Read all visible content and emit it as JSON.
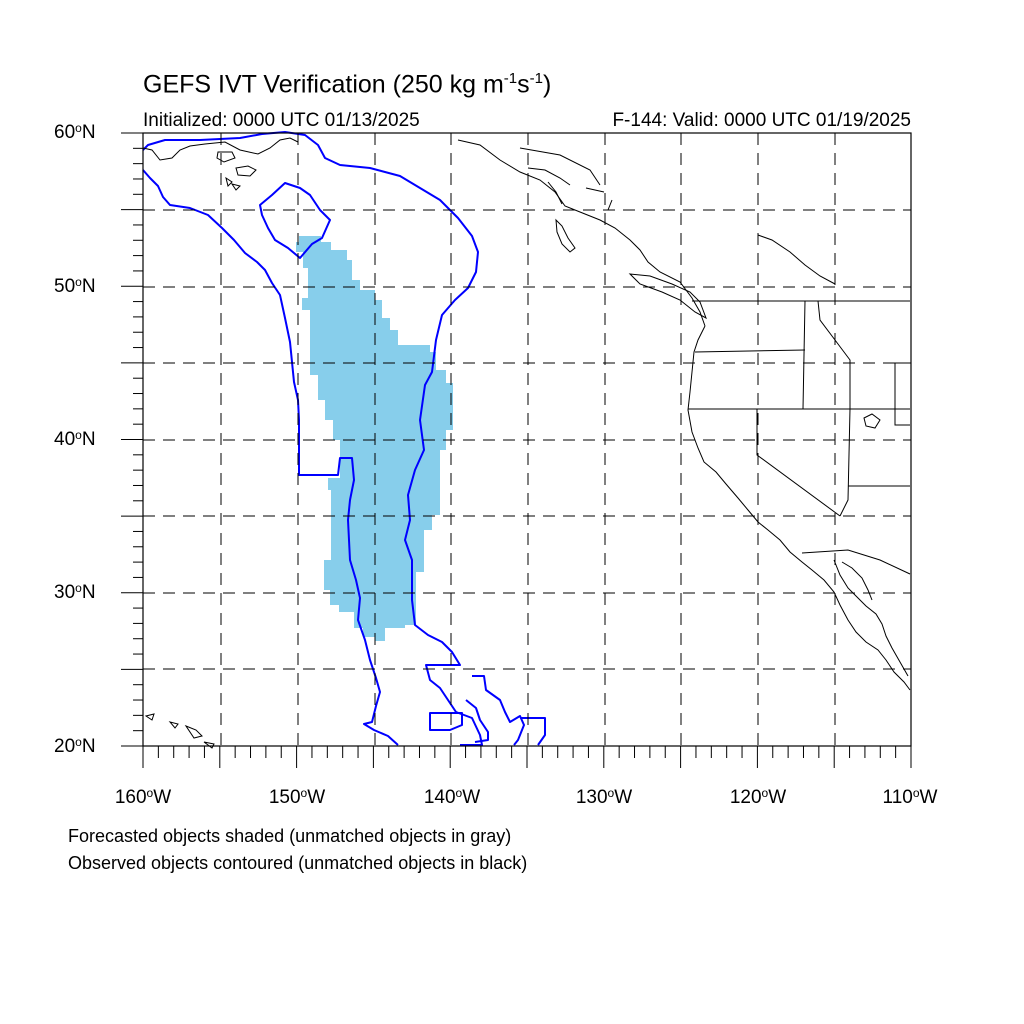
{
  "title": {
    "main": "GEFS IVT Verification (250 kg m",
    "sup1": "-1",
    "mid": "s",
    "sup2": "-1",
    "end": ")"
  },
  "initialized": "Initialized: 0000 UTC 01/13/2025",
  "valid": "F-144: Valid: 0000 UTC 01/19/2025",
  "lat_labels": [
    {
      "num": "60",
      "hem": "N"
    },
    {
      "num": "50",
      "hem": "N"
    },
    {
      "num": "40",
      "hem": "N"
    },
    {
      "num": "30",
      "hem": "N"
    },
    {
      "num": "20",
      "hem": "N"
    }
  ],
  "lon_labels": [
    {
      "num": "160",
      "hem": "W"
    },
    {
      "num": "150",
      "hem": "W"
    },
    {
      "num": "140",
      "hem": "W"
    },
    {
      "num": "130",
      "hem": "W"
    },
    {
      "num": "120",
      "hem": "W"
    },
    {
      "num": "110",
      "hem": "W"
    }
  ],
  "legend_notes": [
    "Forecasted objects shaded (unmatched objects in gray)",
    "Observed objects contoured (unmatched objects in black)"
  ],
  "colors": {
    "forecast_fill": "#87ceeb",
    "observed_contour": "#0000ff",
    "coastline": "#000000",
    "grid": "#000000"
  },
  "map_extent": {
    "lon_min": -160,
    "lon_max": -110,
    "lat_min": 20,
    "lat_max": 60
  },
  "grid": {
    "style": "dashed",
    "lon_step": 5,
    "lat_step": 5
  }
}
